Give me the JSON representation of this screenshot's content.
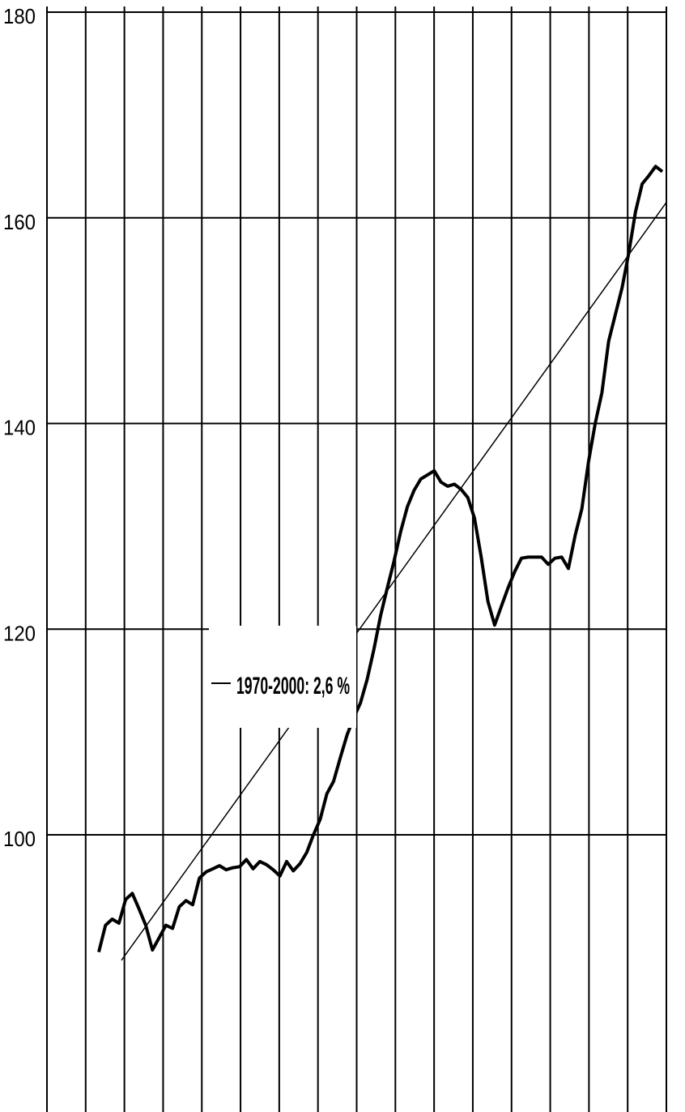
{
  "chart_data": {
    "type": "line",
    "ylim": [
      91,
      180
    ],
    "yticks": [
      180,
      160,
      140,
      120,
      100
    ],
    "y_tick_labels": [
      "180",
      "160",
      "140",
      "120",
      "100"
    ],
    "vertical_gridlines": 16,
    "grid": true,
    "legend_position": "center-left",
    "series": [
      {
        "name": "",
        "style": "thick",
        "values": [
          88.6,
          91.2,
          91.8,
          91.4,
          93.7,
          94.3,
          92.8,
          91.2,
          88.8,
          90.0,
          91.2,
          90.9,
          93.0,
          93.6,
          93.2,
          95.8,
          96.4,
          96.7,
          97.0,
          96.6,
          96.8,
          96.9,
          97.6,
          96.7,
          97.4,
          97.1,
          96.6,
          96.0,
          97.4,
          96.5,
          97.2,
          98.3,
          100.0,
          101.5,
          104.0,
          105.2,
          107.5,
          109.7,
          111.4,
          112.8,
          115.1,
          118.0,
          121.3,
          124.0,
          126.6,
          129.5,
          131.9,
          133.5,
          134.6,
          135.0,
          135.4,
          134.3,
          133.9,
          134.1,
          133.6,
          132.8,
          130.8,
          127.0,
          122.7,
          120.4,
          122.2,
          124.0,
          125.6,
          126.9,
          127.0,
          127.0,
          127.0,
          126.3,
          126.9,
          127.0,
          125.9,
          129.1,
          131.7,
          136.3,
          140.0,
          143.0,
          148.0,
          150.6,
          153.2,
          156.6,
          160.6,
          163.3,
          164.1,
          165.0,
          164.5
        ],
        "x_min": 0,
        "x_max": 1
      },
      {
        "name": "1970-2000: 2,6 %",
        "style": "thin",
        "trend_start": 87.8,
        "trend_end": 161.5
      }
    ],
    "legend_text": "1970-2000: 2,6 %"
  }
}
